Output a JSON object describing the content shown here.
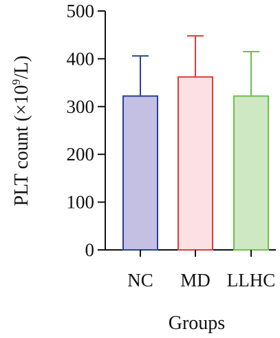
{
  "chart_data": {
    "type": "bar",
    "title": "",
    "xlabel": "Groups",
    "ylabel_main": "PLT count (×10",
    "ylabel_sup": "9",
    "ylabel_tail": "/L)",
    "ylim": [
      0,
      500
    ],
    "yticks": [
      "0",
      "100",
      "200",
      "300",
      "400",
      "500"
    ],
    "categories": [
      "NC",
      "MD",
      "LLHC"
    ],
    "values": [
      322,
      362,
      322
    ],
    "errors_upper": [
      406,
      448,
      415
    ],
    "fill_colors": [
      "#c3c0e4",
      "#fde0e4",
      "#cfe8c4"
    ],
    "edge_colors": [
      "#2b3f8f",
      "#e23a3a",
      "#6cc04a"
    ],
    "axis_color": "#111111"
  }
}
